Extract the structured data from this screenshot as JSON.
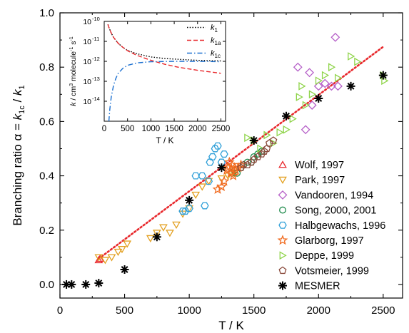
{
  "chart_data": [
    {
      "type": "scatter",
      "xlabel": "T / K",
      "ylabel_main": "Branching ratio α = ",
      "ylabel_num": "k",
      "ylabel_num_sub": "1c",
      "ylabel_sep": " / ",
      "ylabel_den": "k",
      "ylabel_den_sub": "1",
      "xlim": [
        0,
        2650
      ],
      "ylim": [
        -0.05,
        1.0
      ],
      "xticks": [
        "0",
        "500",
        "1000",
        "1500",
        "2000",
        "2500"
      ],
      "xtick_values": [
        0,
        500,
        1000,
        1500,
        2000,
        2500
      ],
      "yticks": [
        "0.0",
        "0.2",
        "0.4",
        "0.6",
        "0.8",
        "1.0"
      ],
      "ytick_values": [
        0.0,
        0.2,
        0.4,
        0.6,
        0.8,
        1.0
      ],
      "legend_position": "bottom-right",
      "fit_line": {
        "color": "#e8282c",
        "x": [
          300,
          2500
        ],
        "y": [
          0.095,
          0.875
        ]
      },
      "series": [
        {
          "name": "Wolf, 1997",
          "marker": "triangle-up",
          "color": "#e8282c",
          "x": [
            300,
            310
          ],
          "y": [
            0.09,
            0.095
          ]
        },
        {
          "name": "Park, 1997",
          "marker": "triangle-down",
          "color": "#e3a020",
          "x": [
            300,
            350,
            400,
            450,
            480,
            520,
            700,
            750,
            800,
            850,
            900,
            950,
            1000,
            1050,
            1100,
            1150,
            1250,
            1300,
            1350
          ],
          "y": [
            0.1,
            0.09,
            0.1,
            0.12,
            0.13,
            0.15,
            0.17,
            0.19,
            0.21,
            0.19,
            0.22,
            0.26,
            0.28,
            0.33,
            0.36,
            0.38,
            0.39,
            0.4,
            0.41
          ]
        },
        {
          "name": "Vandooren, 1994",
          "marker": "diamond",
          "color": "#b660c8",
          "x": [
            1840,
            1900,
            1930,
            1950,
            2000,
            2050,
            2100,
            2130,
            2150
          ],
          "y": [
            0.8,
            0.57,
            0.78,
            0.66,
            0.73,
            0.74,
            0.73,
            0.91,
            0.73
          ]
        },
        {
          "name": "Song, 2000, 2001",
          "marker": "circle",
          "color": "#1d8a4a",
          "x": [
            1330,
            1350,
            1370,
            1400,
            1420,
            1450,
            1480,
            1500,
            1530,
            1560
          ],
          "y": [
            0.41,
            0.42,
            0.41,
            0.43,
            0.44,
            0.45,
            0.45,
            0.47,
            0.48,
            0.49
          ]
        },
        {
          "name": "Halbgewachs, 1996",
          "marker": "hexagon",
          "color": "#2e9fd8",
          "x": [
            950,
            970,
            1000,
            1050,
            1100,
            1120,
            1150,
            1160,
            1180,
            1200,
            1220,
            1250,
            1270
          ],
          "y": [
            0.27,
            0.27,
            0.28,
            0.4,
            0.4,
            0.29,
            0.38,
            0.45,
            0.47,
            0.5,
            0.51,
            0.45,
            0.48
          ]
        },
        {
          "name": "Glarborg, 1997",
          "marker": "star",
          "color": "#f06a1e",
          "x": [
            1220,
            1250,
            1270,
            1290,
            1300,
            1310,
            1320,
            1330,
            1340,
            1350,
            1360,
            1380,
            1400
          ],
          "y": [
            0.35,
            0.36,
            0.38,
            0.42,
            0.43,
            0.45,
            0.41,
            0.44,
            0.4,
            0.43,
            0.42,
            0.43,
            0.44
          ]
        },
        {
          "name": "Deppe, 1999",
          "marker": "triangle-right",
          "color": "#8fd44a",
          "x": [
            1450,
            1500,
            1550,
            1600,
            1650,
            1700,
            1750,
            1800,
            1850,
            1870,
            1900,
            1950,
            2000,
            2050,
            2100,
            2150,
            2250,
            2300,
            2500,
            2510
          ],
          "y": [
            0.54,
            0.53,
            0.5,
            0.55,
            0.52,
            0.56,
            0.57,
            0.61,
            0.69,
            0.73,
            0.66,
            0.7,
            0.75,
            0.77,
            0.8,
            0.76,
            0.84,
            0.82,
            0.77,
            0.75
          ]
        },
        {
          "name": "Votsmeier, 1999",
          "marker": "pentagon",
          "color": "#8a4a3c",
          "x": [
            1400,
            1420,
            1450,
            1480,
            1500,
            1530,
            1560,
            1580,
            1600,
            1620,
            1650
          ],
          "y": [
            0.43,
            0.44,
            0.44,
            0.45,
            0.46,
            0.47,
            0.48,
            0.49,
            0.5,
            0.52,
            0.53
          ]
        },
        {
          "name": "MESMER",
          "marker": "asterisk",
          "color": "#000000",
          "x": [
            50,
            90,
            200,
            300,
            500,
            750,
            1000,
            1250,
            1500,
            1750,
            2000,
            2250,
            2500
          ],
          "y": [
            0.0,
            0.0,
            0.0,
            0.005,
            0.055,
            0.175,
            0.31,
            0.43,
            0.53,
            0.62,
            0.685,
            0.73,
            0.77
          ]
        }
      ]
    },
    {
      "type": "line",
      "xlabel": "T / K",
      "ylabel_pre": "k",
      "ylabel_post": " / cm",
      "ylabel_sup1": "3",
      "ylabel_mid": " molecule",
      "ylabel_sup2": "-1",
      "ylabel_end": " s",
      "ylabel_sup3": "-1",
      "log_scale_y": true,
      "xlim": [
        0,
        2600
      ],
      "ylim_log10": [
        -15,
        -10
      ],
      "xticks": [
        "0",
        "500",
        "1000",
        "1500",
        "2000",
        "2500"
      ],
      "xtick_values": [
        0,
        500,
        1000,
        1500,
        2000,
        2500
      ],
      "yticks": [
        "10",
        "10",
        "10",
        "10",
        "10"
      ],
      "ytick_exponents": [
        "-10",
        "-11",
        "-12",
        "-13",
        "-14"
      ],
      "ytick_values_log10": [
        -10,
        -11,
        -12,
        -13,
        -14
      ],
      "legend_position": "top-right",
      "series": [
        {
          "name": "k",
          "name_sub": "1",
          "style": "dotted",
          "color": "#000000",
          "x": [
            80,
            100,
            150,
            200,
            300,
            400,
            500,
            700,
            1000,
            1300,
            1600,
            2000,
            2500
          ],
          "log10_y": [
            -10.15,
            -10.3,
            -10.58,
            -10.8,
            -11.1,
            -11.3,
            -11.45,
            -11.62,
            -11.78,
            -11.86,
            -11.9,
            -11.95,
            -11.98
          ]
        },
        {
          "name": "k",
          "name_sub": "1a",
          "style": "dashed",
          "color": "#e8282c",
          "x": [
            80,
            100,
            150,
            200,
            300,
            400,
            500,
            700,
            1000,
            1300,
            1600,
            2000,
            2500
          ],
          "log10_y": [
            -10.15,
            -10.3,
            -10.58,
            -10.8,
            -11.1,
            -11.3,
            -11.47,
            -11.7,
            -11.95,
            -12.15,
            -12.3,
            -12.45,
            -12.6
          ]
        },
        {
          "name": "k",
          "name_sub": "1c",
          "style": "dashdot",
          "color": "#1a6fd0",
          "x": [
            100,
            120,
            150,
            200,
            250,
            300,
            400,
            500,
            700,
            1000,
            1500,
            2000,
            2500
          ],
          "log10_y": [
            -15.0,
            -14.4,
            -13.8,
            -13.2,
            -12.85,
            -12.6,
            -12.35,
            -12.2,
            -12.08,
            -12.02,
            -12.0,
            -12.0,
            -12.02
          ]
        }
      ]
    }
  ]
}
